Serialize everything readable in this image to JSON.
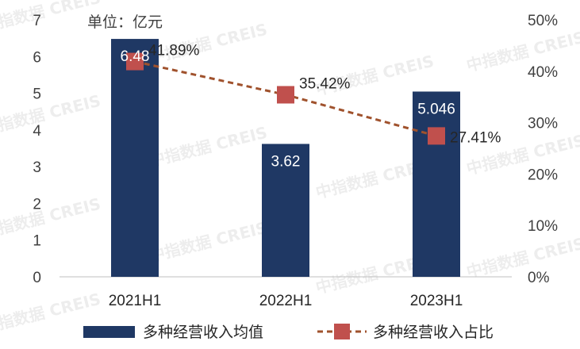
{
  "chart_data": {
    "type": "bar",
    "unit_label": "单位：亿元",
    "categories": [
      "2021H1",
      "2022H1",
      "2023H1"
    ],
    "series": [
      {
        "name": "多种经营收入均值",
        "axis": "left",
        "type": "bar",
        "color": "#1f3864",
        "values": [
          6.48,
          3.62,
          5.046
        ],
        "labels": [
          "6.48",
          "3.62",
          "5.046"
        ]
      },
      {
        "name": "多种经营收入占比",
        "axis": "right",
        "type": "line",
        "color": "#c0504d",
        "line_color": "#a0522d",
        "values": [
          41.89,
          35.42,
          27.41
        ],
        "labels": [
          "41.89%",
          "35.42%",
          "27.41%"
        ]
      }
    ],
    "y_left": {
      "min": 0,
      "max": 7,
      "ticks": [
        "0",
        "1",
        "2",
        "3",
        "4",
        "5",
        "6",
        "7"
      ]
    },
    "y_right": {
      "min": 0,
      "max": 50,
      "ticks": [
        "0%",
        "10%",
        "20%",
        "30%",
        "40%",
        "50%"
      ]
    },
    "legend_position": "bottom",
    "watermark": "中指数据 CREIS"
  }
}
